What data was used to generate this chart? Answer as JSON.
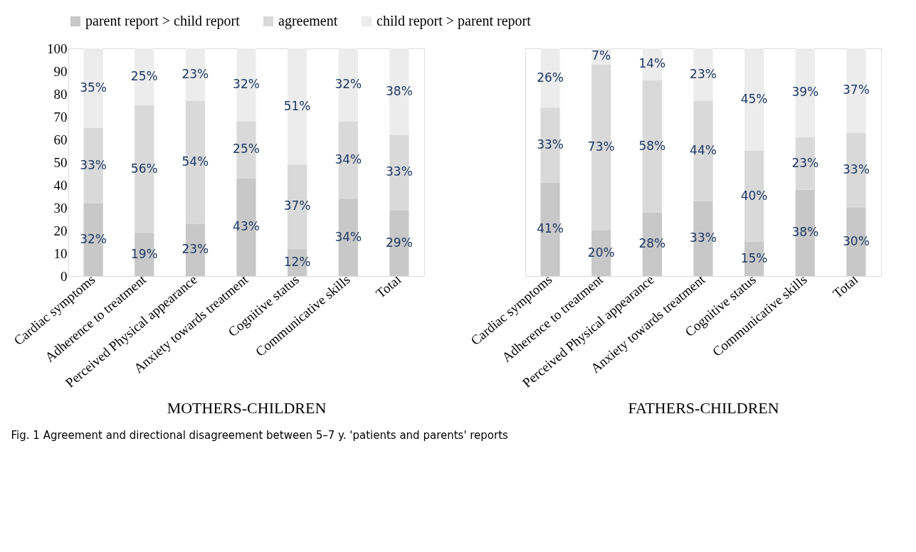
{
  "chart_data": [
    {
      "type": "bar",
      "stacked": true,
      "xlabel": "MOTHERS-CHILDREN",
      "legend": "top",
      "grid": false,
      "categories": [
        "Cardiac symptoms",
        "Adherence to treatment",
        "Perceived Physical appearance",
        "Anxiety towards treatment",
        "Cognitive status",
        "Communicative skills",
        "Total"
      ],
      "series": [
        {
          "name": "parent report > child report",
          "color": "#c8c8c8",
          "values": [
            32,
            19,
            23,
            43,
            12,
            34,
            29
          ],
          "value_labels": [
            "32%",
            "19%",
            "23%",
            "43%",
            "12%",
            "34%",
            "29%"
          ]
        },
        {
          "name": "agreement",
          "color": "#d9d9d9",
          "values": [
            33,
            56,
            54,
            25,
            37,
            34,
            33
          ],
          "value_labels": [
            "33%",
            "56%",
            "54%",
            "25%",
            "37%",
            "34%",
            "33%"
          ]
        },
        {
          "name": "child report > parent report",
          "color": "#ececec",
          "values": [
            35,
            25,
            23,
            32,
            51,
            32,
            38
          ],
          "value_labels": [
            "35%",
            "25%",
            "23%",
            "32%",
            "51%",
            "32%",
            "38%"
          ]
        }
      ],
      "ylim": [
        0,
        100
      ],
      "yticks": [
        0,
        10,
        20,
        30,
        40,
        50,
        60,
        70,
        80,
        90,
        100
      ],
      "annotations": [
        "Fig. 1  Agreement and directional disagreement between 5–7 y. 'patients and parents' reports"
      ]
    },
    {
      "type": "bar",
      "stacked": true,
      "xlabel": "FATHERS-CHILDREN",
      "legend": false,
      "grid": false,
      "tick_labels": "x",
      "categories": [
        "Cardiac symptoms",
        "Adherence to treatment",
        "Perceived Physical appearance",
        "Anxiety towards treatment",
        "Cognitive status",
        "Communicative skills",
        "Total"
      ],
      "series": [
        {
          "name": "parent report > child report",
          "color": "#c8c8c8",
          "values": [
            41,
            20,
            28,
            33,
            15,
            38,
            30
          ],
          "value_labels": [
            "41%",
            "20%",
            "28%",
            "33%",
            "15%",
            "38%",
            "30%"
          ]
        },
        {
          "name": "agreement",
          "color": "#d9d9d9",
          "values": [
            33,
            73,
            58,
            44,
            40,
            23,
            33
          ],
          "value_labels": [
            "33%",
            "73%",
            "58%",
            "44%",
            "40%",
            "23%",
            "33%"
          ]
        },
        {
          "name": "child report > parent report",
          "color": "#ececec",
          "values": [
            26,
            7,
            14,
            23,
            45,
            39,
            37
          ],
          "value_labels": [
            "26%",
            "7%",
            "14%",
            "23%",
            "45%",
            "39%",
            "37%"
          ]
        }
      ],
      "ylim": [
        0,
        100
      ]
    }
  ]
}
